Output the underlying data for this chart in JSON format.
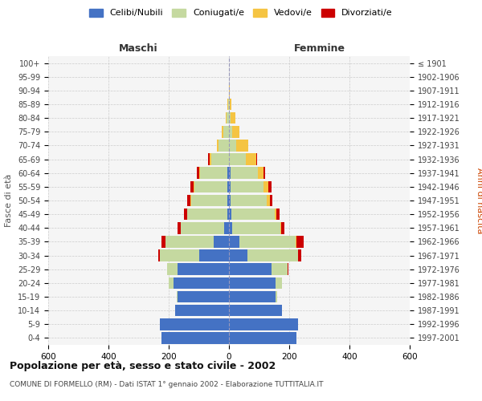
{
  "age_groups": [
    "0-4",
    "5-9",
    "10-14",
    "15-19",
    "20-24",
    "25-29",
    "30-34",
    "35-39",
    "40-44",
    "45-49",
    "50-54",
    "55-59",
    "60-64",
    "65-69",
    "70-74",
    "75-79",
    "80-84",
    "85-89",
    "90-94",
    "95-99",
    "100+"
  ],
  "birth_years": [
    "1997-2001",
    "1992-1996",
    "1987-1991",
    "1982-1986",
    "1977-1981",
    "1972-1976",
    "1967-1971",
    "1962-1966",
    "1957-1961",
    "1952-1956",
    "1947-1951",
    "1942-1946",
    "1937-1941",
    "1932-1936",
    "1927-1931",
    "1922-1926",
    "1917-1921",
    "1912-1916",
    "1907-1911",
    "1902-1906",
    "≤ 1901"
  ],
  "males": {
    "celibi": [
      225,
      230,
      180,
      170,
      185,
      170,
      100,
      50,
      15,
      5,
      5,
      5,
      5,
      0,
      0,
      0,
      0,
      0,
      0,
      0,
      0
    ],
    "coniugati": [
      0,
      0,
      0,
      3,
      15,
      35,
      130,
      160,
      145,
      135,
      120,
      110,
      90,
      60,
      35,
      20,
      8,
      3,
      1,
      0,
      0
    ],
    "vedovi": [
      0,
      0,
      0,
      0,
      0,
      0,
      0,
      0,
      0,
      0,
      3,
      3,
      3,
      5,
      5,
      5,
      3,
      2,
      0,
      0,
      0
    ],
    "divorziati": [
      0,
      0,
      0,
      0,
      0,
      0,
      5,
      15,
      10,
      10,
      10,
      10,
      8,
      5,
      0,
      0,
      0,
      0,
      0,
      0,
      0
    ]
  },
  "females": {
    "nubili": [
      225,
      230,
      175,
      155,
      155,
      140,
      60,
      35,
      10,
      8,
      5,
      5,
      5,
      0,
      0,
      0,
      0,
      0,
      0,
      0,
      0
    ],
    "coniugate": [
      0,
      0,
      0,
      5,
      20,
      55,
      170,
      185,
      160,
      145,
      120,
      110,
      90,
      55,
      25,
      10,
      5,
      3,
      1,
      0,
      0
    ],
    "vedove": [
      0,
      0,
      0,
      0,
      0,
      0,
      0,
      3,
      3,
      5,
      10,
      15,
      20,
      35,
      40,
      25,
      15,
      5,
      2,
      0,
      0
    ],
    "divorziate": [
      0,
      0,
      0,
      0,
      0,
      3,
      10,
      25,
      10,
      10,
      10,
      10,
      5,
      3,
      0,
      0,
      0,
      0,
      0,
      0,
      0
    ]
  },
  "colors": {
    "celibi": "#4472C4",
    "coniugati": "#C5D9A0",
    "vedovi": "#F5C442",
    "divorziati": "#CC0000"
  },
  "title": "Popolazione per età, sesso e stato civile - 2002",
  "subtitle": "COMUNE DI FORMELLO (RM) - Dati ISTAT 1° gennaio 2002 - Elaborazione TUTTITALIA.IT",
  "xlabel_left": "Maschi",
  "xlabel_right": "Femmine",
  "ylabel_left": "Fasce di età",
  "ylabel_right": "Anni di nascita",
  "xlim": 600,
  "legend_labels": [
    "Celibi/Nubili",
    "Coniugati/e",
    "Vedovi/e",
    "Divorziati/e"
  ],
  "bg_color": "#ffffff",
  "grid_color": "#cccccc"
}
